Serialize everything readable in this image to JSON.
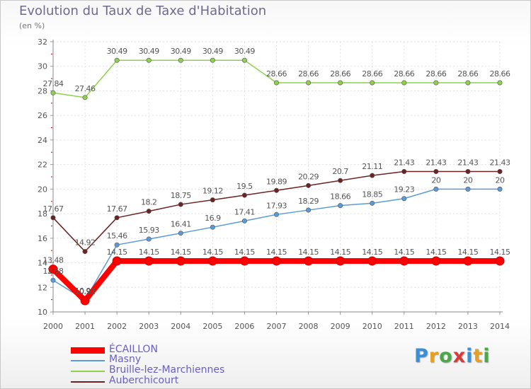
{
  "title": "Evolution du Taux de Taxe d'Habitation",
  "subtitle": "(en %)",
  "brand": {
    "text": "Proxiti",
    "letter_colors": [
      "#3a8fd6",
      "#e8a020",
      "#4aa84a",
      "#d83a3a",
      "#3a8fd6",
      "#e8a020",
      "#4aa84a"
    ]
  },
  "chart_data": {
    "type": "line",
    "title": "Evolution du Taux de Taxe d'Habitation",
    "ylabel": "(en %)",
    "xlabel": "",
    "ylim": [
      10,
      32
    ],
    "yticks": [
      10,
      12,
      14,
      16,
      18,
      20,
      22,
      24,
      26,
      28,
      30,
      32
    ],
    "x": [
      "2000",
      "2001",
      "2002",
      "2003",
      "2004",
      "2005",
      "2006",
      "2007",
      "2008",
      "2009",
      "2010",
      "2011",
      "2012",
      "2013",
      "2014"
    ],
    "grid": true,
    "legend": "bottom-left",
    "series": [
      {
        "name": "ÉCAILLON",
        "color": "#ff0000",
        "values": [
          13.48,
          10.92,
          14.15,
          14.15,
          14.15,
          14.15,
          14.15,
          14.15,
          14.15,
          14.15,
          14.15,
          14.15,
          14.15,
          14.15,
          14.15
        ],
        "labels": [
          "13.48",
          "10.92",
          "14.15",
          "14.15",
          "14.15",
          "14.15",
          "14.15",
          "14.15",
          "14.15",
          "14.15",
          "14.15",
          "14.15",
          "14.15",
          "14.15",
          "14.15"
        ]
      },
      {
        "name": "Masny",
        "color": "#5b9bd5",
        "values": [
          12.58,
          10.97,
          15.46,
          15.93,
          16.41,
          16.9,
          17.41,
          17.93,
          18.29,
          18.66,
          18.85,
          19.23,
          20,
          20,
          20
        ],
        "labels": [
          "12.58",
          "10.97",
          "15.46",
          "15.93",
          "16.41",
          "16.9",
          "17.41",
          "17.93",
          "18.29",
          "18.66",
          "18.85",
          "19.23",
          "20",
          "20",
          "20"
        ]
      },
      {
        "name": "Bruille-lez-Marchiennes",
        "color": "#8fd14f",
        "values": [
          27.84,
          27.46,
          30.49,
          30.49,
          30.49,
          30.49,
          30.49,
          28.66,
          28.66,
          28.66,
          28.66,
          28.66,
          28.66,
          28.66,
          28.66
        ],
        "labels": [
          "27.84",
          "27.46",
          "30.49",
          "30.49",
          "30.49",
          "30.49",
          "30.49",
          "28.66",
          "28.66",
          "28.66",
          "28.66",
          "28.66",
          "28.66",
          "28.66",
          "28.66"
        ]
      },
      {
        "name": "Auberchicourt",
        "color": "#6b2222",
        "values": [
          17.67,
          14.92,
          17.67,
          18.2,
          18.75,
          19.12,
          19.5,
          19.89,
          20.29,
          20.7,
          21.11,
          21.43,
          21.43,
          21.43,
          21.43
        ],
        "labels": [
          "17.67",
          "14.92",
          "17.67",
          "18.2",
          "18.75",
          "19.12",
          "19.5",
          "19.89",
          "20.29",
          "20.7",
          "21.11",
          "21.43",
          "21.43",
          "21.43",
          "21.43"
        ]
      }
    ]
  }
}
